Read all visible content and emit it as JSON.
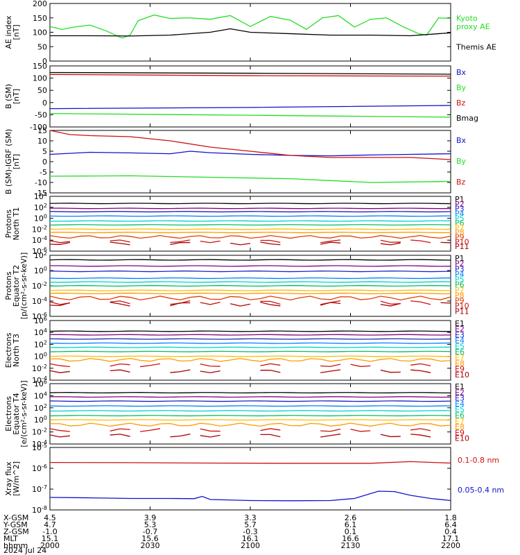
{
  "colors": {
    "black": "#000000",
    "green": "#22dd22",
    "blue": "#1010cc",
    "red": "#cc1010"
  },
  "chart_data": [
    {
      "type": "line",
      "id": "ae",
      "ylabel": "AE index\n[nT]",
      "ylim": [
        0,
        200
      ],
      "yticks": [
        "0",
        "50",
        "100",
        "150",
        "200"
      ],
      "series": [
        {
          "name": "Kyoto\nproxy AE",
          "color": "#22dd22",
          "x": [
            0,
            0.03,
            0.06,
            0.1,
            0.14,
            0.18,
            0.2,
            0.22,
            0.26,
            0.3,
            0.35,
            0.4,
            0.45,
            0.5,
            0.55,
            0.6,
            0.64,
            0.68,
            0.72,
            0.76,
            0.8,
            0.84,
            0.88,
            0.92,
            0.94,
            0.97,
            1
          ],
          "y": [
            120,
            110,
            118,
            125,
            105,
            80,
            90,
            140,
            160,
            148,
            150,
            145,
            158,
            120,
            155,
            142,
            110,
            150,
            158,
            118,
            145,
            150,
            120,
            95,
            90,
            150,
            148
          ]
        },
        {
          "name": "Themis AE",
          "color": "#000000",
          "x": [
            0,
            0.1,
            0.2,
            0.3,
            0.4,
            0.45,
            0.5,
            0.6,
            0.7,
            0.8,
            0.9,
            1
          ],
          "y": [
            88,
            88,
            87,
            90,
            100,
            112,
            100,
            95,
            90,
            90,
            88,
            98
          ]
        }
      ]
    },
    {
      "type": "line",
      "id": "bsm",
      "ylabel": "B (SM)\n[nT]",
      "ylim": [
        -100,
        150
      ],
      "yticks": [
        "-100",
        "-50",
        "0",
        "50",
        "100",
        "150"
      ],
      "series": [
        {
          "name": "Bx",
          "color": "#1010cc",
          "x": [
            0,
            0.5,
            1
          ],
          "y": [
            -25,
            -20,
            -12
          ]
        },
        {
          "name": "By",
          "color": "#22dd22",
          "x": [
            0,
            0.5,
            1
          ],
          "y": [
            -45,
            -52,
            -60
          ]
        },
        {
          "name": "Bz",
          "color": "#cc1010",
          "x": [
            0,
            0.5,
            1
          ],
          "y": [
            115,
            110,
            108
          ]
        },
        {
          "name": "Bmag",
          "color": "#000000",
          "x": [
            0,
            0.5,
            1
          ],
          "y": [
            123,
            120,
            116
          ]
        }
      ]
    },
    {
      "type": "line",
      "id": "bigrf",
      "ylabel": "B (SM)-IGRF (SM)\n[nT]",
      "ylim": [
        -15,
        15
      ],
      "yticks": [
        "-15",
        "-10",
        "-5",
        "0",
        "5",
        "10",
        "15"
      ],
      "series": [
        {
          "name": "Bx",
          "color": "#1010cc",
          "x": [
            0,
            0.1,
            0.2,
            0.3,
            0.35,
            0.4,
            0.5,
            0.6,
            0.7,
            0.8,
            0.9,
            1
          ],
          "y": [
            3.5,
            4.5,
            4.2,
            3.8,
            5,
            4.3,
            3.5,
            3,
            2.8,
            3.2,
            3.5,
            3.8
          ]
        },
        {
          "name": "By",
          "color": "#22dd22",
          "x": [
            0,
            0.2,
            0.4,
            0.6,
            0.8,
            1
          ],
          "y": [
            -7,
            -6.8,
            -7.5,
            -8.2,
            -10,
            -9.5
          ]
        },
        {
          "name": "Bz",
          "color": "#cc1010",
          "x": [
            0,
            0.05,
            0.1,
            0.2,
            0.3,
            0.4,
            0.5,
            0.6,
            0.7,
            0.8,
            0.9,
            1
          ],
          "y": [
            15,
            13,
            12.5,
            12,
            10,
            7,
            5,
            3,
            2,
            2,
            2,
            1
          ]
        }
      ]
    },
    {
      "type": "line",
      "id": "pn",
      "logscale": true,
      "ylabel": "Protons\nNorth T1",
      "ylim": [
        -6,
        4
      ],
      "yticks": [
        "10<sup>-6</sup>",
        "10<sup>-4</sup>",
        "10<sup>-2</sup>",
        "10<sup>0</sup>",
        "10<sup>2</sup>",
        "10<sup>4</sup>"
      ],
      "legend": [
        "P1",
        "P2",
        "P3",
        "P4",
        "P5",
        "P6",
        "P7",
        "P8",
        "P9",
        "P10",
        "P11"
      ],
      "levels": [
        2.7,
        1.8,
        1.2,
        0.4,
        -0.5,
        -1.2,
        -2,
        -2.6,
        -3.4,
        -4.2,
        -4.6
      ]
    },
    {
      "type": "line",
      "id": "pe",
      "logscale": true,
      "ylabel": "Protons\nEquator T2\n[p/(cm²-s-sr-keV)]",
      "ylim": [
        -6,
        2
      ],
      "yticks": [
        "10<sup>-6</sup>",
        "10<sup>-4</sup>",
        "10<sup>-2</sup>",
        "10<sup>0</sup>",
        "10<sup>2</sup>"
      ],
      "legend": [
        "P1",
        "P2",
        "P3",
        "P4",
        "P5",
        "P6",
        "P7",
        "P8",
        "P9",
        "P10",
        "P11"
      ],
      "levels": [
        1.4,
        0.6,
        -0.1,
        -1,
        -1.5,
        -2,
        -2.6,
        -3,
        -3.6,
        -4.2,
        -4.4
      ]
    },
    {
      "type": "line",
      "id": "en",
      "logscale": true,
      "ylabel": "Electrons\nNorth T3",
      "ylim": [
        -4,
        6
      ],
      "yticks": [
        "10<sup>-4</sup>",
        "10<sup>-2</sup>",
        "10<sup>0</sup>",
        "10<sup>2</sup>",
        "10<sup>4</sup>",
        "10<sup>6</sup>"
      ],
      "legend": [
        "E1",
        "E2",
        "E3",
        "E4",
        "E5",
        "E6",
        "E7",
        "E8",
        "E9",
        "E10"
      ],
      "levels": [
        4.2,
        3.6,
        2.9,
        2.2,
        1.5,
        0.8,
        0,
        -0.6,
        -1.5,
        -2.5
      ]
    },
    {
      "type": "line",
      "id": "ee",
      "logscale": true,
      "ylabel": "Electrons\nEquator T4\n[e/(cm²-s-sr-keV)]",
      "ylim": [
        -4,
        6
      ],
      "yticks": [
        "10<sup>-4</sup>",
        "10<sup>-2</sup>",
        "10<sup>0</sup>",
        "10<sup>2</sup>",
        "10<sup>4</sup>",
        "10<sup>6</sup>"
      ],
      "legend": [
        "E1",
        "E2",
        "E3",
        "E4",
        "E5",
        "E6",
        "E7",
        "E8",
        "E9",
        "E10"
      ],
      "levels": [
        4.5,
        3.8,
        3.1,
        2.3,
        1.5,
        0.7,
        0,
        -0.8,
        -1.7,
        -2.6
      ]
    },
    {
      "type": "line",
      "id": "xray",
      "logscale": true,
      "ylabel": "Xray flux\n[W/m^2]",
      "ylim": [
        -8,
        -5
      ],
      "yticks": [
        "10<sup>-8</sup>",
        "10<sup>-7</sup>",
        "10<sup>-6</sup>",
        "10<sup>-5</sup>"
      ],
      "series": [
        {
          "name": "0.1-0.8 nm",
          "color": "#cc1010",
          "x": [
            0,
            0.2,
            0.4,
            0.6,
            0.8,
            0.9,
            1
          ],
          "y": [
            -5.72,
            -5.73,
            -5.75,
            -5.76,
            -5.76,
            -5.68,
            -5.75
          ]
        },
        {
          "name": "0.05-0.4 nm",
          "color": "#1010cc",
          "x": [
            0,
            0.1,
            0.2,
            0.3,
            0.36,
            0.38,
            0.4,
            0.5,
            0.6,
            0.7,
            0.76,
            0.82,
            0.86,
            0.9,
            0.95,
            1
          ],
          "y": [
            -7.4,
            -7.42,
            -7.45,
            -7.45,
            -7.46,
            -7.35,
            -7.5,
            -7.55,
            -7.56,
            -7.55,
            -7.45,
            -7.1,
            -7.12,
            -7.3,
            -7.45,
            -7.55
          ]
        }
      ]
    }
  ],
  "ephemeris": {
    "rows": [
      {
        "label": "X-GSM",
        "values": [
          "4.5",
          "3.9",
          "3.3",
          "2.6",
          "1.8"
        ]
      },
      {
        "label": "Y-GSM",
        "values": [
          "4.7",
          "5.3",
          "5.7",
          "6.1",
          "6.4"
        ]
      },
      {
        "label": "Z-GSM",
        "values": [
          "-1.0",
          "-0.7",
          "-0.3",
          "0.1",
          "0.4"
        ]
      },
      {
        "label": "MLT",
        "values": [
          "15.1",
          "15.6",
          "16.1",
          "16.6",
          "17.1"
        ]
      },
      {
        "label": "hhmm",
        "values": [
          "2000",
          "2030",
          "2100",
          "2130",
          "2200"
        ]
      }
    ],
    "date": "2024 Jul 24"
  },
  "panel_colors_11": [
    "#000000",
    "#800080",
    "#2020c0",
    "#0080ff",
    "#00d0d0",
    "#00c060",
    "#ffbb00",
    "#ff9900",
    "#e04000",
    "#cc1010",
    "#aa0000"
  ],
  "panel_colors_10": [
    "#000000",
    "#800080",
    "#2020c0",
    "#0080ff",
    "#00d0d0",
    "#00c060",
    "#ffbb00",
    "#ff9900",
    "#cc1010",
    "#aa0000"
  ]
}
